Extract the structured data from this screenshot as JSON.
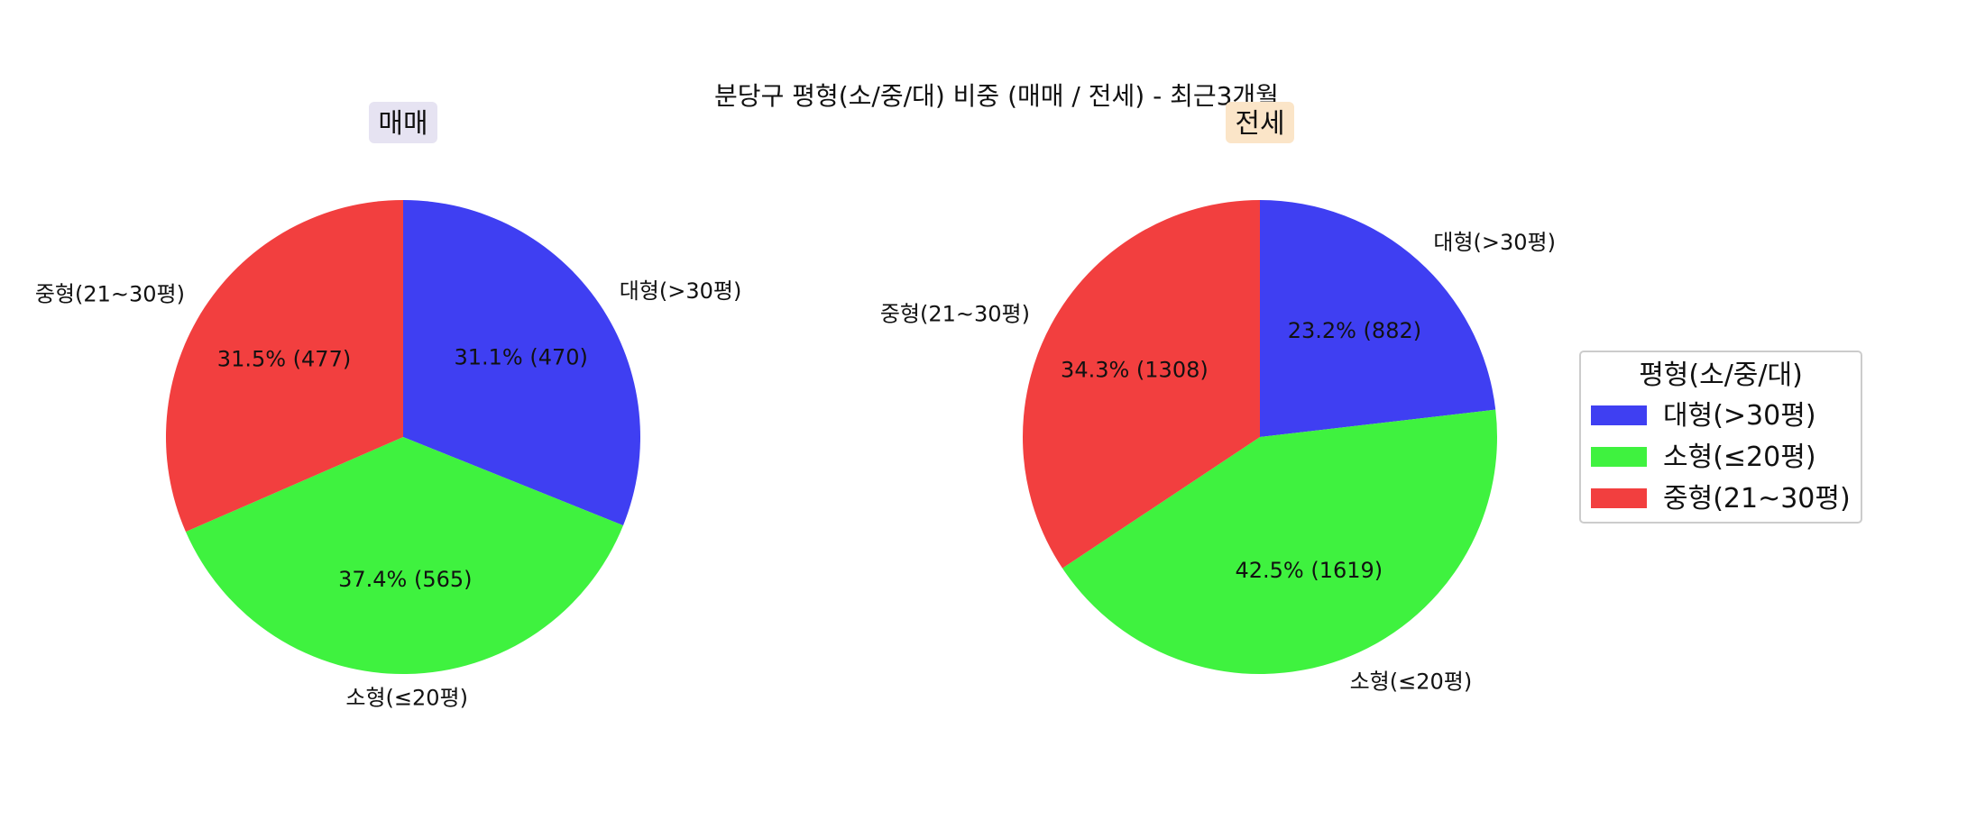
{
  "chart_data": {
    "type": "pie",
    "title": "분당구 평형(소/중/대) 비중 (매매 / 전세) - 최근3개월",
    "legend": {
      "title": "평형(소/중/대)",
      "placement": "right",
      "entries": [
        "대형(>30평)",
        "소형(≤20평)",
        "중형(21~30평)"
      ]
    },
    "colors": {
      "대형(>30평)": "#3f3ff2",
      "소형(≤20평)": "#3ff23f",
      "중형(21~30평)": "#f23f3f",
      "매매_title_bg": "#e6e3f2",
      "전세_title_bg": "#fbe5c8"
    },
    "categories": [
      "대형(>30평)",
      "소형(≤20평)",
      "중형(21~30평)"
    ],
    "pies": [
      {
        "title": "매매",
        "values": [
          470,
          565,
          477
        ],
        "percent_labels": [
          "31.1% (470)",
          "37.4% (565)",
          "31.5% (477)"
        ]
      },
      {
        "title": "전세",
        "values": [
          882,
          1619,
          1308
        ],
        "percent_labels": [
          "23.2% (882)",
          "42.5% (1619)",
          "34.3% (1308)"
        ]
      }
    ]
  }
}
